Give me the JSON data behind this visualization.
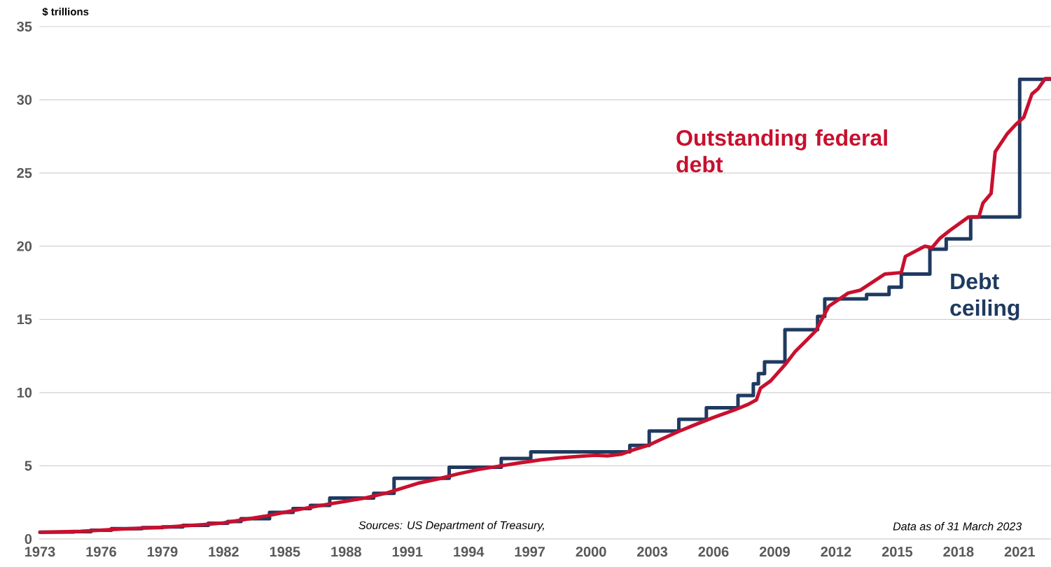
{
  "chart_data": {
    "type": "line",
    "ylabel": "$ trillions",
    "annotations": [
      "Sources: US Department of Treasury,",
      "Data as of 31 March 2023"
    ],
    "xlim": [
      1973,
      2022.5
    ],
    "ylim": [
      0,
      35
    ],
    "xticks": [
      1973,
      1976,
      1979,
      1982,
      1985,
      1988,
      1991,
      1994,
      1997,
      2000,
      2003,
      2006,
      2009,
      2012,
      2015,
      2018,
      2021
    ],
    "yticks": [
      0,
      5,
      10,
      15,
      20,
      25,
      30,
      35
    ],
    "grid": "y",
    "series": [
      {
        "name": "Debt ceiling",
        "type": "step",
        "color": "#1f3a60",
        "x": [
          1973,
          1974.65,
          1975.5,
          1976.5,
          1978,
          1979,
          1980,
          1981.25,
          1982.2,
          1982.85,
          1984.25,
          1985.4,
          1986.25,
          1987.2,
          1989.35,
          1990.35,
          1993.05,
          1995.6,
          1997.05,
          2001.9,
          2002.85,
          2004.3,
          2005.65,
          2007.2,
          2007.95,
          2008.2,
          2008.5,
          2009.5,
          2011.1,
          2011.45,
          2013.5,
          2014.6,
          2015.2,
          2016.6,
          2017.4,
          2018.6,
          2021.0,
          2022.5
        ],
        "values": [
          0.47,
          0.5,
          0.6,
          0.7,
          0.78,
          0.83,
          0.93,
          1.08,
          1.2,
          1.39,
          1.82,
          2.08,
          2.3,
          2.8,
          3.12,
          4.15,
          4.9,
          5.5,
          5.95,
          6.4,
          7.38,
          8.18,
          8.96,
          9.8,
          10.6,
          11.3,
          12.1,
          14.3,
          15.2,
          16.4,
          16.7,
          17.2,
          18.1,
          19.8,
          20.5,
          22.0,
          31.4,
          31.4
        ]
      },
      {
        "name": "Outstanding federal debt",
        "type": "line",
        "color": "#c8102e",
        "x": [
          1973,
          1975,
          1977,
          1979,
          1981,
          1982,
          1983,
          1984,
          1985,
          1986,
          1987,
          1988,
          1989,
          1990,
          1990.7,
          1991.5,
          1992.5,
          1993.5,
          1994.5,
          1995.5,
          1996.5,
          1997.5,
          1998.5,
          1999.5,
          2000.2,
          2000.8,
          2001.5,
          2002,
          2002.8,
          2003.5,
          2004.3,
          2005,
          2006,
          2007,
          2007.7,
          2008.1,
          2008.3,
          2008.8,
          2009.5,
          2010,
          2010.5,
          2011,
          2011.65,
          2012.6,
          2013.2,
          2014.4,
          2015.2,
          2015.4,
          2016.35,
          2016.7,
          2017.1,
          2017.6,
          2018.5,
          2019.0,
          2019.2,
          2019.6,
          2019.8,
          2020.4,
          2020.8,
          2021.2,
          2021.6,
          2021.9,
          2022.25,
          2022.5
        ],
        "values": [
          0.46,
          0.53,
          0.68,
          0.8,
          0.98,
          1.1,
          1.33,
          1.55,
          1.83,
          2.1,
          2.35,
          2.58,
          2.82,
          3.15,
          3.45,
          3.8,
          4.1,
          4.45,
          4.75,
          4.98,
          5.2,
          5.4,
          5.55,
          5.65,
          5.72,
          5.68,
          5.8,
          6.05,
          6.4,
          6.85,
          7.35,
          7.75,
          8.3,
          8.8,
          9.2,
          9.5,
          10.3,
          10.8,
          11.9,
          12.8,
          13.5,
          14.2,
          15.9,
          16.8,
          17.0,
          18.1,
          18.2,
          19.3,
          20.0,
          19.9,
          20.55,
          21.1,
          22.0,
          22.0,
          22.95,
          23.6,
          26.45,
          27.7,
          28.3,
          28.8,
          30.4,
          30.75,
          31.45,
          31.45
        ]
      }
    ]
  }
}
